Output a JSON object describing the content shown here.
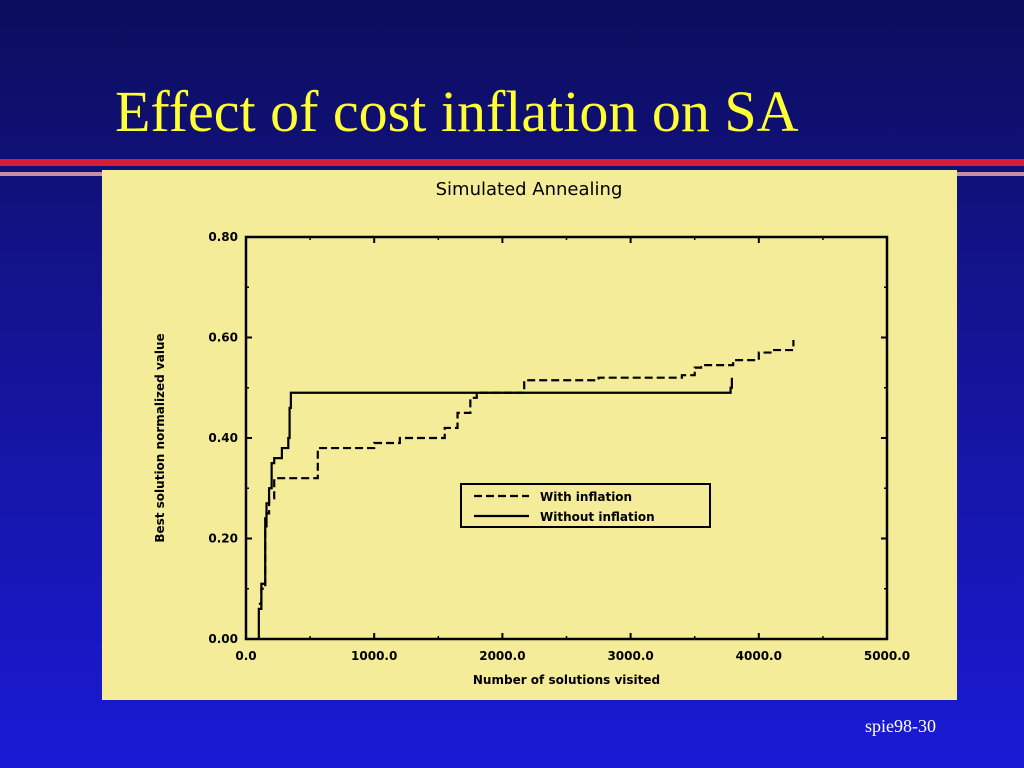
{
  "slide": {
    "title": "Effect of cost inflation on SA",
    "footer": "spie98-30"
  },
  "colors": {
    "background_top": "#0c0c5c",
    "background_bottom": "#1a1ad6",
    "title": "#ffff33",
    "rule_red": "#d81c3c",
    "rule_pink": "#c88ea8",
    "chart_background": "#f4ec98",
    "ink": "#000000"
  },
  "chart_data": {
    "type": "line",
    "title": "Simulated Annealing",
    "xlabel": "Number of solutions visited",
    "ylabel": "Best solution normalized value",
    "xlim": [
      0,
      5000
    ],
    "ylim": [
      0,
      0.8
    ],
    "xticks": [
      "0.0",
      "1000.0",
      "2000.0",
      "3000.0",
      "4000.0",
      "5000.0"
    ],
    "yticks": [
      "0.00",
      "0.20",
      "0.40",
      "0.60",
      "0.80"
    ],
    "grid": false,
    "legend_position": "center-right",
    "series": [
      {
        "name": "With inflation",
        "style": "dashed",
        "x": [
          100,
          120,
          150,
          160,
          180,
          220,
          540,
          560,
          1000,
          1200,
          1450,
          1550,
          1650,
          1750,
          1800,
          2150,
          2170,
          2700,
          2750,
          3300,
          3400,
          3500,
          3550,
          3750,
          3800,
          3900,
          4000,
          4100,
          4250,
          4270
        ],
        "y": [
          0.07,
          0.1,
          0.22,
          0.25,
          0.28,
          0.32,
          0.32,
          0.38,
          0.39,
          0.4,
          0.4,
          0.42,
          0.45,
          0.48,
          0.49,
          0.49,
          0.515,
          0.515,
          0.52,
          0.52,
          0.525,
          0.54,
          0.545,
          0.545,
          0.555,
          0.555,
          0.57,
          0.575,
          0.575,
          0.595
        ]
      },
      {
        "name": "Without inflation",
        "style": "solid",
        "x": [
          100,
          100,
          120,
          150,
          160,
          180,
          200,
          220,
          280,
          330,
          340,
          350,
          3760,
          3780,
          3790
        ],
        "y": [
          0.0,
          0.06,
          0.11,
          0.24,
          0.27,
          0.3,
          0.35,
          0.36,
          0.38,
          0.4,
          0.46,
          0.49,
          0.49,
          0.5,
          0.52
        ]
      }
    ]
  }
}
